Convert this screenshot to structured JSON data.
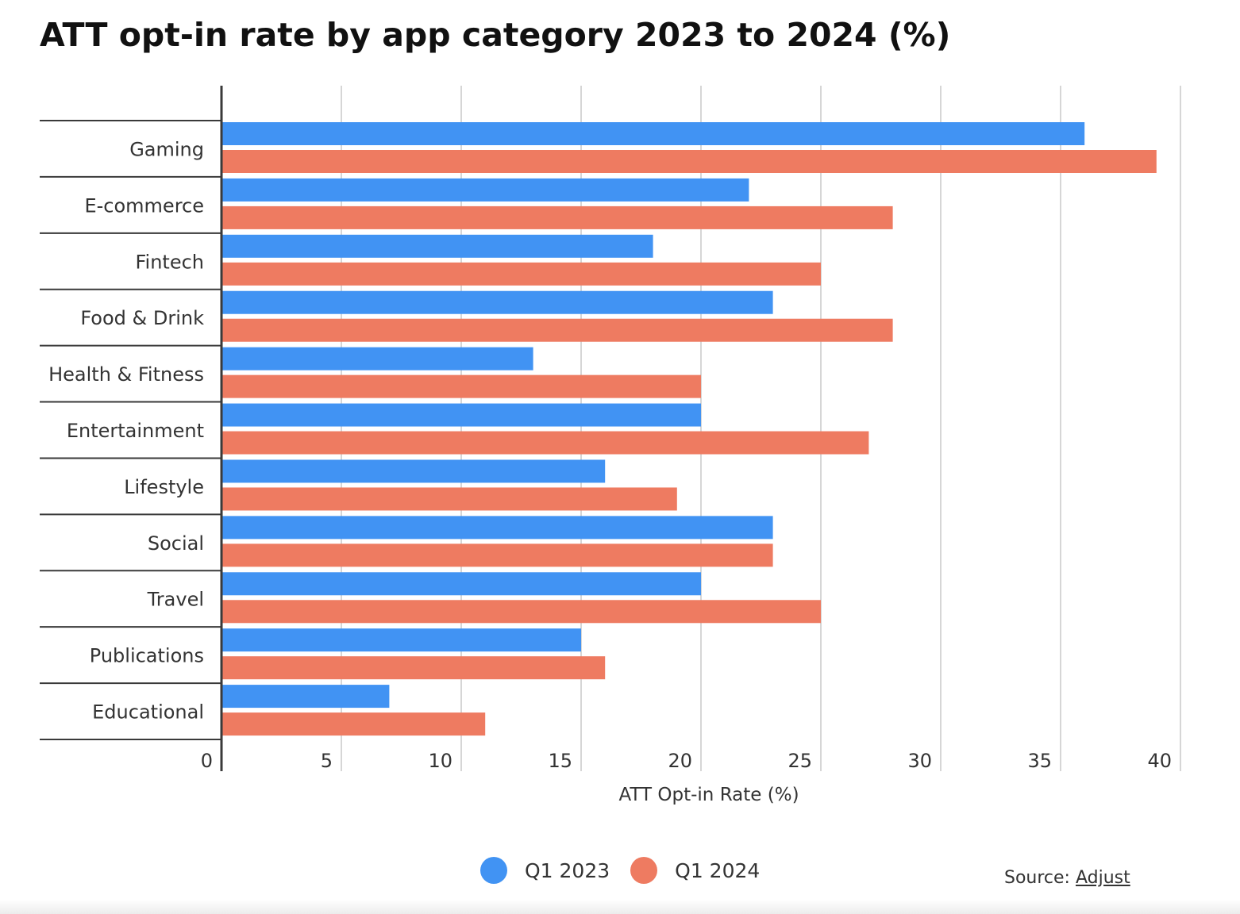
{
  "chart_data": {
    "type": "bar",
    "orientation": "horizontal",
    "title": "ATT opt-in rate by app category 2023 to 2024 (%)",
    "xlabel": "ATT Opt-in Rate (%)",
    "ylabel": "",
    "xlim": [
      0,
      40
    ],
    "xticks": [
      "0",
      "5",
      "10",
      "15",
      "20",
      "25",
      "30",
      "35",
      "40"
    ],
    "grid": "vertical",
    "legend_position": "bottom",
    "categories": [
      "Gaming",
      "E-commerce",
      "Fintech",
      "Food & Drink",
      "Health & Fitness",
      "Entertainment",
      "Lifestyle",
      "Social",
      "Travel",
      "Publications",
      "Educational"
    ],
    "series": [
      {
        "name": "Q1 2023",
        "color": "#4193f3",
        "values": [
          36,
          22,
          18,
          23,
          13,
          20,
          16,
          23,
          20,
          15,
          7
        ]
      },
      {
        "name": "Q1 2024",
        "color": "#ee7b61",
        "values": [
          39,
          28,
          25,
          28,
          20,
          27,
          19,
          23,
          25,
          16,
          11
        ]
      }
    ]
  },
  "source": {
    "label": "Source:",
    "link_text": "Adjust"
  }
}
